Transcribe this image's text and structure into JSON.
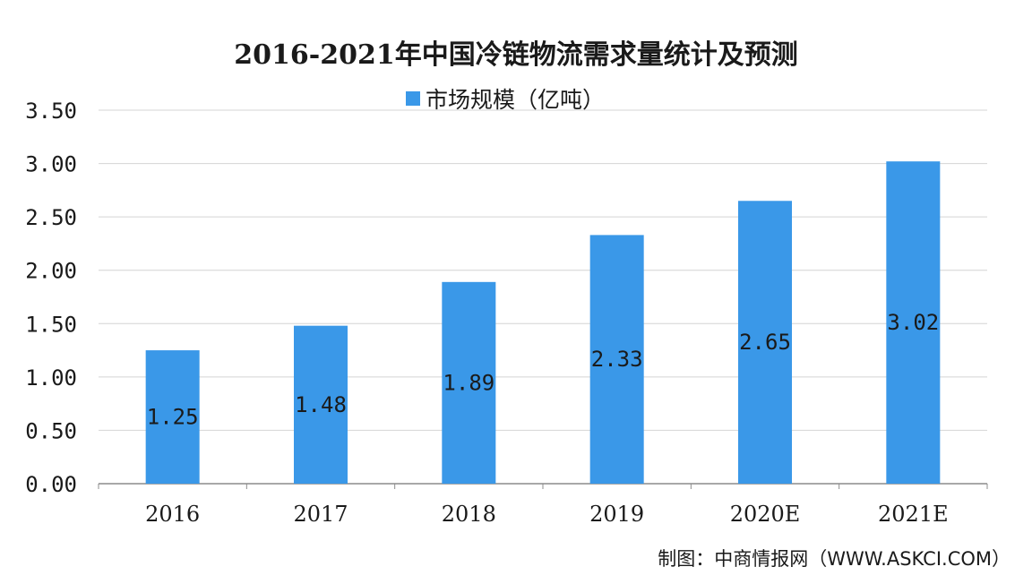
{
  "chart_data": {
    "type": "bar",
    "title": "2016-2021年中国冷链物流需求量统计及预测",
    "categories": [
      "2016",
      "2017",
      "2018",
      "2019",
      "2020E",
      "2021E"
    ],
    "series": [
      {
        "name": "市场规模（亿吨）",
        "values": [
          1.25,
          1.48,
          1.89,
          2.33,
          2.65,
          3.02
        ]
      }
    ],
    "data_labels": [
      "1.25",
      "1.48",
      "1.89",
      "2.33",
      "2.65",
      "3.02"
    ],
    "y_tick_labels": [
      "0.00",
      "0.50",
      "1.00",
      "1.50",
      "2.00",
      "2.50",
      "3.00",
      "3.50"
    ],
    "ylim": [
      0,
      3.5
    ],
    "y_tick_step": 0.5,
    "xlabel": "",
    "ylabel": "",
    "grid": true,
    "legend_position": "top-center",
    "bar_color": "#3a98e8"
  },
  "source_text": "制图：中商情报网（WWW.ASKCI.COM）"
}
